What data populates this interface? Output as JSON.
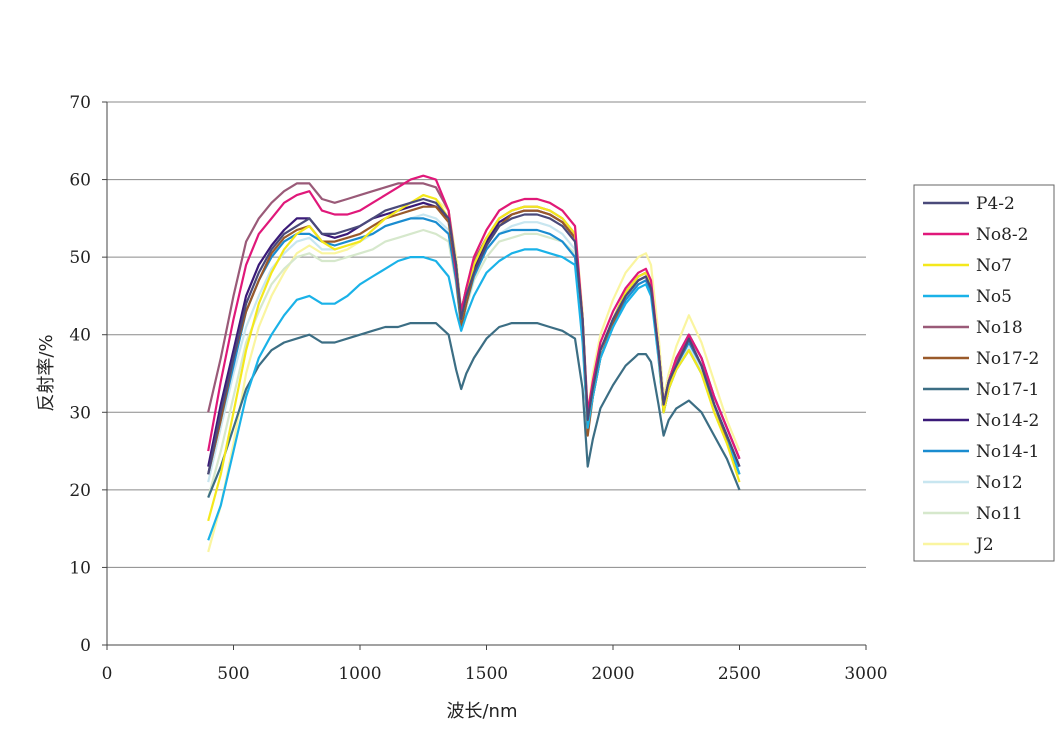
{
  "chart_data": {
    "type": "line",
    "title": "",
    "xlabel": "波长/nm",
    "ylabel": "反射率/%",
    "xlim": [
      0,
      3000
    ],
    "ylim": [
      0,
      70
    ],
    "xticks": [
      "0",
      "500",
      "1000",
      "1500",
      "2000",
      "2500",
      "3000"
    ],
    "yticks": [
      "0",
      "10",
      "20",
      "30",
      "40",
      "50",
      "60",
      "70"
    ],
    "grid": "horizontal",
    "legend_position": "right",
    "x": [
      400,
      450,
      500,
      550,
      600,
      650,
      700,
      750,
      800,
      850,
      900,
      950,
      1000,
      1050,
      1100,
      1150,
      1200,
      1250,
      1300,
      1350,
      1380,
      1400,
      1420,
      1450,
      1500,
      1550,
      1600,
      1650,
      1700,
      1750,
      1800,
      1850,
      1880,
      1900,
      1920,
      1950,
      2000,
      2050,
      2100,
      2130,
      2150,
      2180,
      2200,
      2220,
      2250,
      2300,
      2350,
      2400,
      2450,
      2500
    ],
    "series": [
      {
        "name": "P4-2",
        "color": "#4a4a7a",
        "values": [
          22,
          30,
          37,
          44,
          48,
          51,
          53,
          54,
          55,
          53,
          53,
          53.5,
          54,
          55,
          56,
          56.5,
          57,
          57.5,
          57,
          55,
          49,
          42,
          45,
          48,
          51.5,
          54,
          55,
          55.5,
          55.5,
          55,
          54,
          52,
          42,
          29,
          33,
          38,
          42,
          45,
          47,
          47.5,
          46,
          38,
          31,
          34,
          36,
          39.5,
          36,
          31,
          27,
          23
        ]
      },
      {
        "name": "No8-2",
        "color": "#e0187a",
        "values": [
          25,
          34,
          42,
          49,
          53,
          55,
          57,
          58,
          58.5,
          56,
          55.5,
          55.5,
          56,
          57,
          58,
          59,
          60,
          60.5,
          60,
          56,
          48,
          43,
          46,
          50,
          53.5,
          56,
          57,
          57.5,
          57.5,
          57,
          56,
          54,
          42,
          30,
          34,
          39,
          43,
          46,
          48,
          48.5,
          47,
          38,
          31,
          34,
          37,
          40,
          37,
          32,
          28,
          24
        ]
      },
      {
        "name": "No7",
        "color": "#f4e81c",
        "values": [
          16,
          22,
          30,
          38,
          44,
          48,
          51,
          53,
          54,
          52,
          51,
          51.5,
          52,
          53.5,
          55,
          56,
          57,
          58,
          57.5,
          55,
          49,
          42,
          45,
          49,
          52.5,
          55,
          56,
          56.5,
          56.5,
          56,
          55,
          53,
          42,
          29,
          33,
          38,
          42,
          45.5,
          47.5,
          48,
          46.5,
          38,
          30,
          33,
          35.5,
          38,
          35,
          30,
          26,
          21
        ]
      },
      {
        "name": "No5",
        "color": "#1ab2e8",
        "values": [
          13.5,
          18,
          25,
          32,
          37,
          40,
          42.5,
          44.5,
          45,
          44,
          44,
          45,
          46.5,
          47.5,
          48.5,
          49.5,
          50,
          50,
          49.5,
          47.5,
          43,
          40.5,
          42.5,
          45,
          48,
          49.5,
          50.5,
          51,
          51,
          50.5,
          50,
          49,
          39,
          28,
          32,
          37,
          41,
          44,
          46,
          46.5,
          45,
          37,
          30,
          33,
          35.5,
          38,
          35,
          31,
          27,
          22
        ]
      },
      {
        "name": "No18",
        "color": "#9a5a78",
        "values": [
          30,
          37,
          45,
          52,
          55,
          57,
          58.5,
          59.5,
          59.5,
          57.5,
          57,
          57.5,
          58,
          58.5,
          59,
          59.5,
          59.5,
          59.5,
          59,
          56,
          49,
          43,
          46,
          49.5,
          52.5,
          55,
          56,
          56.5,
          56.5,
          56,
          55,
          53,
          42,
          29,
          33,
          38,
          42,
          45,
          47,
          47.5,
          46,
          38,
          31,
          34,
          36.5,
          39.5,
          36,
          31,
          27,
          23
        ]
      },
      {
        "name": "No17-2",
        "color": "#9a5a2a",
        "values": [
          22,
          29,
          37,
          43,
          47,
          50.5,
          52.5,
          53.5,
          54,
          52,
          52,
          52.5,
          53,
          54,
          55,
          55.5,
          56,
          56.5,
          56.5,
          54.5,
          48,
          41,
          44,
          48,
          51.5,
          54,
          55.5,
          56,
          56,
          55.5,
          54.5,
          52.5,
          41,
          27,
          32,
          37,
          41.5,
          45,
          47,
          47.5,
          46,
          37.5,
          30,
          33,
          36,
          39.5,
          36,
          31,
          26.5,
          22
        ]
      },
      {
        "name": "No17-1",
        "color": "#3c6e84",
        "values": [
          19,
          23,
          28,
          33,
          36,
          38,
          39,
          39.5,
          40,
          39,
          39,
          39.5,
          40,
          40.5,
          41,
          41,
          41.5,
          41.5,
          41.5,
          40,
          35.5,
          33,
          35,
          37,
          39.5,
          41,
          41.5,
          41.5,
          41.5,
          41,
          40.5,
          39.5,
          33,
          23,
          26.5,
          30.5,
          33.5,
          36,
          37.5,
          37.5,
          36.5,
          31,
          27,
          29,
          30.5,
          31.5,
          30,
          27,
          24,
          20
        ]
      },
      {
        "name": "No14-2",
        "color": "#3a1a78",
        "values": [
          23,
          31,
          38,
          45,
          49,
          51.5,
          53.5,
          55,
          55,
          53,
          52.5,
          53,
          54,
          55,
          55.5,
          56,
          56.5,
          57,
          56.5,
          55,
          49,
          42.5,
          45,
          48.5,
          52,
          54.5,
          55.5,
          56,
          56,
          55.5,
          54.5,
          52.5,
          42,
          29,
          33,
          38,
          42,
          45.5,
          47.5,
          48,
          46.5,
          38,
          31,
          34,
          37,
          40,
          37,
          32,
          28,
          24
        ]
      },
      {
        "name": "No14-1",
        "color": "#1a8cd0",
        "values": [
          22,
          29,
          36,
          43,
          47,
          50,
          52,
          53,
          53,
          52,
          51.5,
          52,
          52.5,
          53,
          54,
          54.5,
          55,
          55,
          54.5,
          53,
          47,
          41,
          44,
          47.5,
          51,
          53,
          53.5,
          53.5,
          53.5,
          53,
          52,
          50,
          40,
          28,
          32,
          37,
          41,
          44.5,
          46.5,
          47,
          45.5,
          37.5,
          30,
          33,
          36,
          39,
          36,
          31,
          27,
          23
        ]
      },
      {
        "name": "No12",
        "color": "#c8e6f0",
        "values": [
          21,
          28,
          35,
          41,
          45,
          48.5,
          50.5,
          52,
          52.5,
          51,
          51,
          51.5,
          52,
          53,
          54,
          54.5,
          55,
          55.5,
          55,
          53.5,
          47.5,
          41,
          44,
          47.5,
          51,
          53,
          54,
          54.5,
          54.5,
          54,
          53,
          51,
          40,
          28,
          32,
          37,
          41,
          44.5,
          46.5,
          47,
          45.5,
          37,
          30,
          33,
          35.5,
          38.5,
          35.5,
          30.5,
          26.5,
          22
        ]
      },
      {
        "name": "No11",
        "color": "#d6e8cc",
        "values": [
          19,
          25,
          32,
          39,
          43,
          46.5,
          48.5,
          50,
          50.5,
          49.5,
          49.5,
          50,
          50.5,
          51,
          52,
          52.5,
          53,
          53.5,
          53,
          52,
          46.5,
          41,
          43.5,
          47,
          50,
          52,
          52.5,
          53,
          53,
          52.5,
          52,
          50.5,
          40,
          28,
          32,
          37,
          41,
          44.5,
          46.5,
          47,
          45.5,
          37,
          30,
          33,
          35.5,
          38,
          35,
          30,
          26,
          22
        ]
      },
      {
        "name": "J2",
        "color": "#faf5a0",
        "values": [
          12,
          18,
          26,
          35,
          41,
          45,
          48,
          50.5,
          51.5,
          50.5,
          50.5,
          51,
          52,
          53.5,
          55,
          56,
          57,
          58,
          57.5,
          56,
          50,
          43,
          46,
          50,
          53.5,
          56,
          57,
          57.5,
          57.5,
          57,
          56,
          54,
          43,
          30,
          35,
          40,
          44.5,
          48,
          50,
          50.5,
          49,
          40,
          32,
          35,
          38.5,
          42.5,
          39,
          34,
          29,
          25
        ]
      }
    ]
  }
}
